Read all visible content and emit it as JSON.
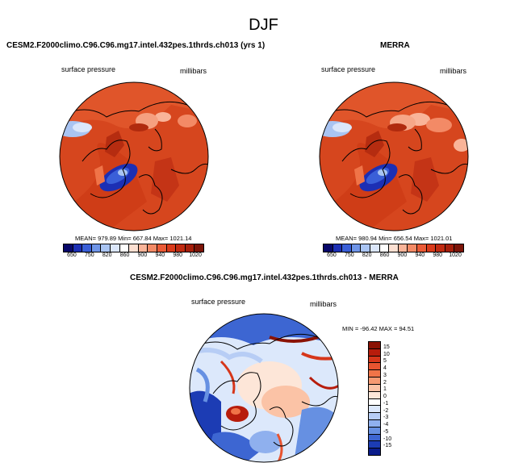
{
  "figure": {
    "title": "DJF"
  },
  "panels": [
    {
      "title": "CESM2.F2000climo.C96.C96.mg17.intel.432pes.1thrds.ch013 (yrs 1)",
      "left_label": "surface pressure",
      "right_label": "millibars",
      "stats": "MEAN= 979.89  Min= 667.84  Max= 1021.14"
    },
    {
      "title": "MERRA",
      "left_label": "surface pressure",
      "right_label": "millibars",
      "stats": "MEAN= 980.94  Min= 656.54  Max= 1021.01"
    },
    {
      "title": "CESM2.F2000climo.C96.C96.mg17.intel.432pes.1thrds.ch013 - MERRA",
      "left_label": "surface pressure",
      "right_label": "millibars",
      "stats": "MIN = -96.42  MAX =  94.51"
    }
  ],
  "colorbar_abs": {
    "ticks": [
      "650",
      "750",
      "820",
      "860",
      "900",
      "940",
      "980",
      "1020"
    ],
    "colors": [
      "#08086a",
      "#1c2fb4",
      "#3a5fd8",
      "#6f95e8",
      "#a9c4f2",
      "#dbe6fa",
      "#ffffff",
      "#fde0d2",
      "#f9b499",
      "#f38a66",
      "#ea5a36",
      "#d93a1a",
      "#c02a10",
      "#a51e0a",
      "#7c1408"
    ]
  },
  "colorbar_diff": {
    "ticks": [
      "15",
      "10",
      "5",
      "4",
      "3",
      "2",
      "1",
      "0",
      "-1",
      "-2",
      "-3",
      "-4",
      "-5",
      "-10",
      "-15"
    ],
    "colors": [
      "#8a1204",
      "#b71c0c",
      "#d6361a",
      "#e85430",
      "#f07448",
      "#f69a72",
      "#fbc3a6",
      "#fde6d8",
      "#ffffff",
      "#dce8fb",
      "#b7cdf5",
      "#8fb0ee",
      "#6690e2",
      "#3d66d2",
      "#1c3cb4",
      "#0a1c8a"
    ]
  }
}
